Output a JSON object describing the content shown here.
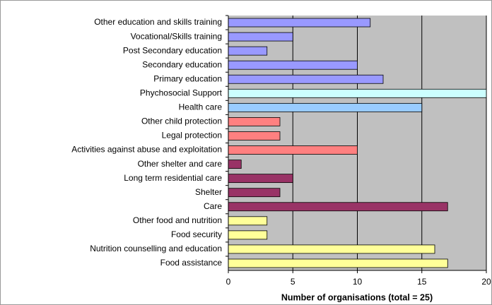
{
  "chart_data": {
    "type": "bar",
    "orientation": "horizontal",
    "categories": [
      "Other education and skills training",
      "Vocational/Skills training",
      "Post Secondary education",
      "Secondary education",
      "Primary education",
      "Phychosocial Support",
      "Health care",
      "Other child protection",
      "Legal protection",
      "Activities against abuse and exploitation",
      "Other shelter and care",
      "Long term residential care",
      "Shelter",
      "Care",
      "Other food and nutrition",
      "Food security",
      "Nutrition counselling and education",
      "Food assistance"
    ],
    "values": [
      11,
      5,
      3,
      10,
      12,
      20,
      15,
      4,
      4,
      10,
      1,
      5,
      4,
      17,
      3,
      3,
      16,
      17
    ],
    "colors": [
      "#9999ff",
      "#9999ff",
      "#9999ff",
      "#9999ff",
      "#9999ff",
      "#ccffff",
      "#99ccff",
      "#ff8080",
      "#ff8080",
      "#ff8080",
      "#993366",
      "#993366",
      "#993366",
      "#993366",
      "#ffff99",
      "#ffff99",
      "#ffff99",
      "#ffff99"
    ],
    "x_label": "Number of organisations (total = 25)",
    "xlim": [
      0,
      20
    ],
    "xticks": [
      0,
      5,
      10,
      15,
      20
    ],
    "grid": true,
    "background": "#c0c0c0"
  }
}
